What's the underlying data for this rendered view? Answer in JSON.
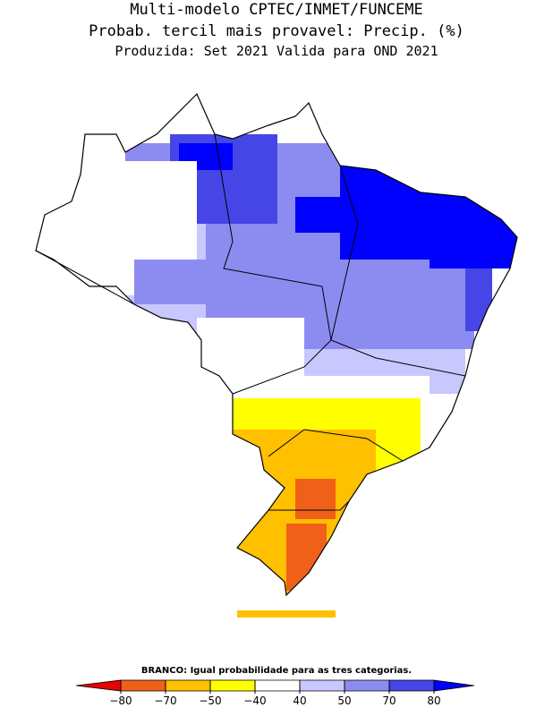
{
  "header": {
    "title": "Multi-modelo CPTEC/INMET/FUNCEME",
    "subtitle": "Probab. tercil mais provavel: Precip. (%)",
    "info": "Produzida: Set 2021  Valida para OND 2021"
  },
  "legend": {
    "note": "BRANCO: Igual probabilidade para as tres categorias.",
    "ticks": [
      {
        "value": -80,
        "label": "−80"
      },
      {
        "value": -70,
        "label": "−70"
      },
      {
        "value": -50,
        "label": "−50"
      },
      {
        "value": -40,
        "label": "−40"
      },
      40,
      50,
      70,
      80
    ],
    "colors": [
      "#e80000",
      "#f06018",
      "#ffc000",
      "#ffff00",
      "#ffffff",
      "#c8c8ff",
      "#8c8cf0",
      "#4646e6",
      "#0000ff"
    ]
  }
}
